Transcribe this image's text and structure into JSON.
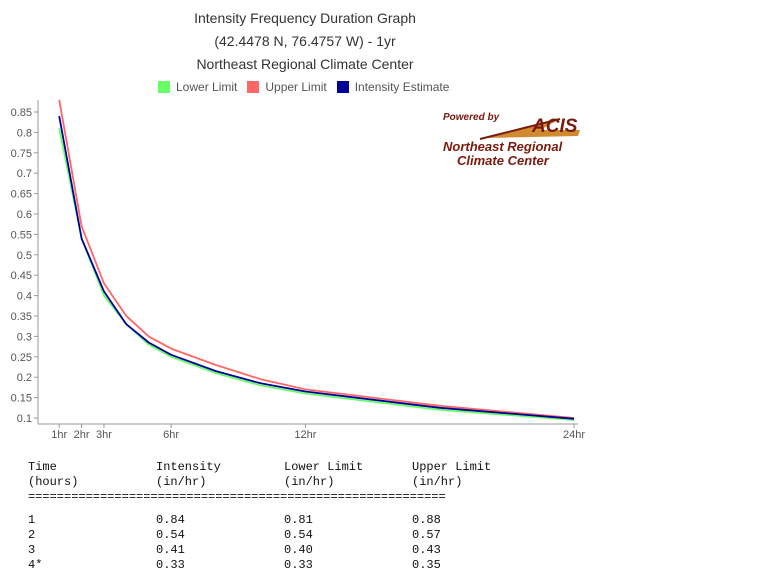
{
  "titles": {
    "line1": "Intensity Frequency Duration Graph",
    "line2": "(42.4478 N, 76.4757 W) - 1yr",
    "line3": "Northeast Regional Climate Center"
  },
  "logo": {
    "powered": "Powered by",
    "acis": "ACIS",
    "line1": "Northeast Regional",
    "line2": "Climate Center"
  },
  "chart_data": {
    "type": "line",
    "title": "Intensity Frequency Duration Graph",
    "legend_position": "top",
    "grid": false,
    "x_ticks": [
      {
        "x": 1,
        "label": "1hr"
      },
      {
        "x": 2,
        "label": "2hr"
      },
      {
        "x": 3,
        "label": "3hr"
      },
      {
        "x": 6,
        "label": "6hr"
      },
      {
        "x": 12,
        "label": "12hr"
      },
      {
        "x": 24,
        "label": "24hr"
      }
    ],
    "xlim": [
      0.5,
      24
    ],
    "ylim": [
      0.1,
      0.85
    ],
    "y_ticks": [
      "0.1",
      "0.15",
      "0.2",
      "0.25",
      "0.3",
      "0.35",
      "0.4",
      "0.45",
      "0.5",
      "0.55",
      "0.6",
      "0.65",
      "0.7",
      "0.75",
      "0.8",
      "0.85"
    ],
    "x": [
      1,
      2,
      3,
      4,
      5,
      6,
      8,
      10,
      12,
      18,
      24
    ],
    "series": [
      {
        "name": "Lower Limit",
        "color": "#66ff66",
        "values": [
          0.81,
          0.54,
          0.4,
          0.33,
          0.28,
          0.25,
          0.21,
          0.18,
          0.16,
          0.12,
          0.095
        ]
      },
      {
        "name": "Upper Limit",
        "color": "#ff6666",
        "values": [
          0.88,
          0.57,
          0.43,
          0.35,
          0.3,
          0.27,
          0.23,
          0.195,
          0.17,
          0.13,
          0.1
        ]
      },
      {
        "name": "Intensity Estimate",
        "color": "#000099",
        "values": [
          0.84,
          0.54,
          0.41,
          0.33,
          0.285,
          0.255,
          0.215,
          0.185,
          0.165,
          0.125,
          0.098
        ]
      }
    ]
  },
  "table": {
    "headers": [
      [
        "Time",
        "(hours)"
      ],
      [
        "Intensity",
        "(in/hr)"
      ],
      [
        "Lower Limit",
        "(in/hr)"
      ],
      [
        "Upper Limit",
        "(in/hr)"
      ]
    ],
    "separator": "==========================================================",
    "rows": [
      [
        "1",
        "0.84",
        "0.81",
        "0.88"
      ],
      [
        "2",
        "0.54",
        "0.54",
        "0.57"
      ],
      [
        "3",
        "0.41",
        "0.40",
        "0.43"
      ],
      [
        "4*",
        "0.33",
        "0.33",
        "0.35"
      ]
    ]
  }
}
